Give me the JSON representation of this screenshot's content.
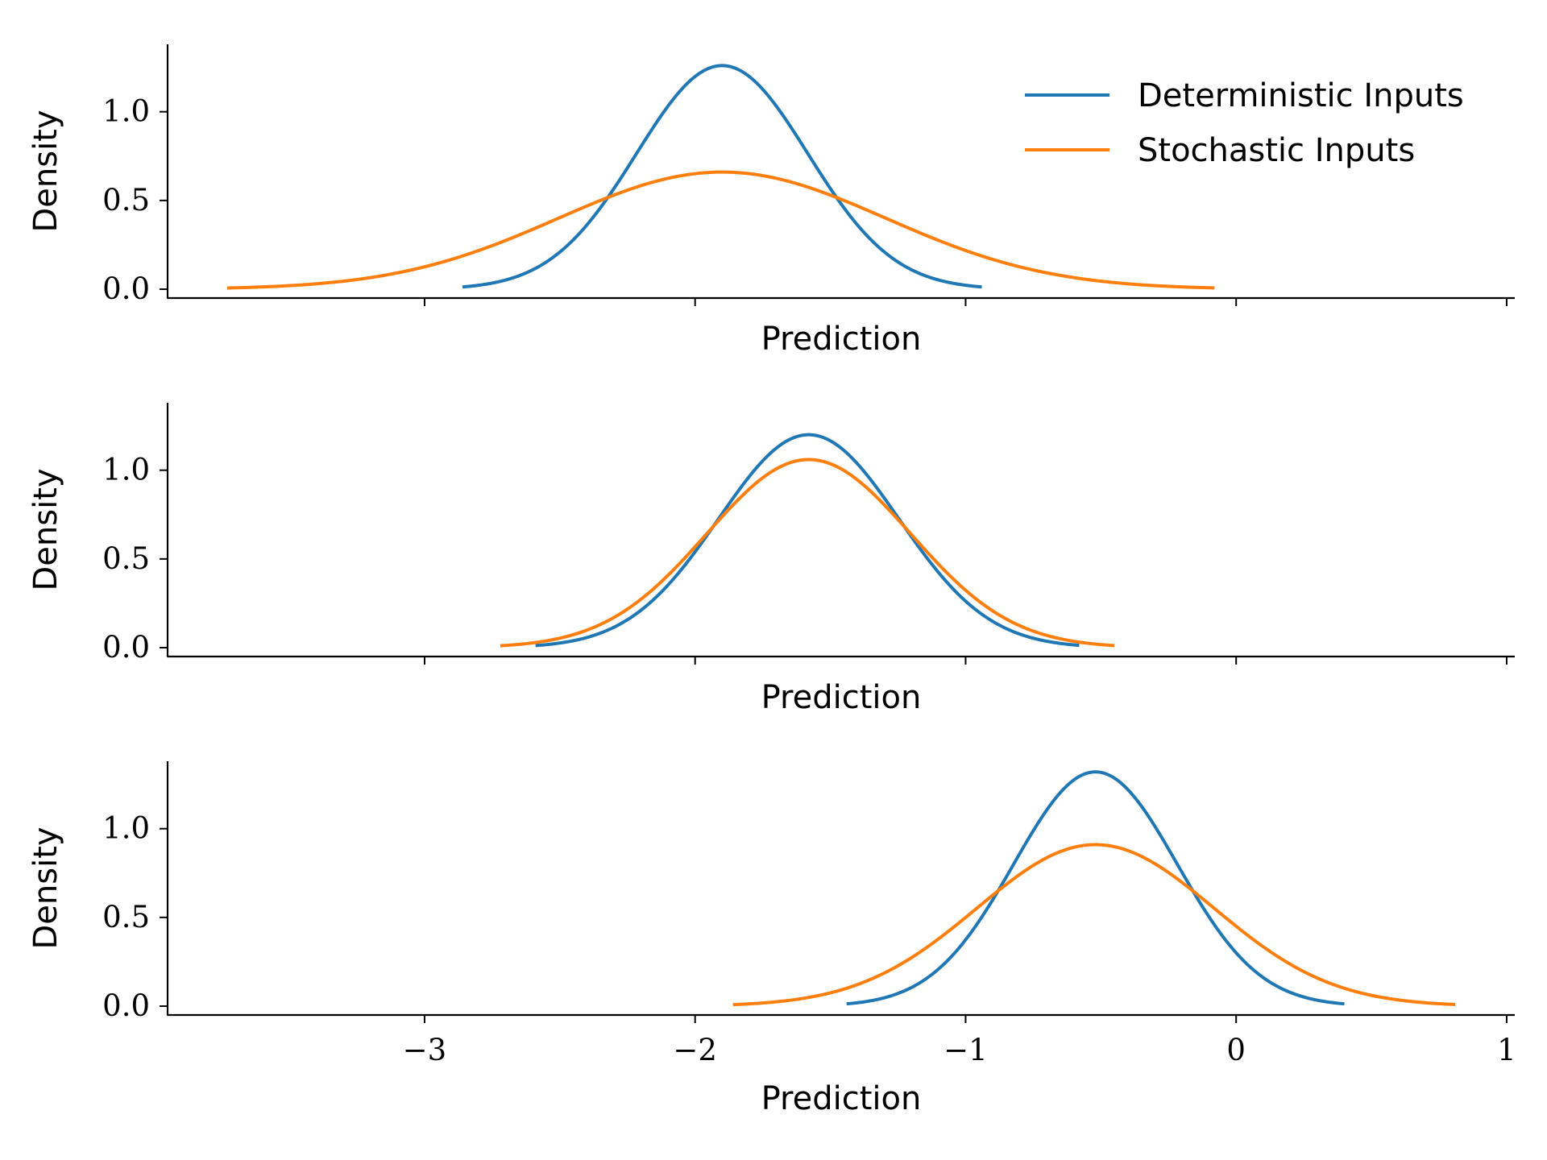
{
  "chart_data": [
    {
      "type": "line",
      "xlabel": "Prediction",
      "ylabel": "Density",
      "xlim": [
        -3.95,
        1.03
      ],
      "ylim": [
        -0.05,
        1.38
      ],
      "xticks": [
        -3,
        -2,
        -1,
        0,
        1
      ],
      "xtick_labels": [
        "",
        "",
        "",
        "",
        ""
      ],
      "yticks": [
        0.0,
        0.5,
        1.0
      ],
      "ytick_labels": [
        "0.0",
        "0.5",
        "1.0"
      ],
      "legend": "top-right",
      "series": [
        {
          "name": "Deterministic Inputs",
          "color": "#1f77b4",
          "mean": -1.9,
          "peak": 1.26,
          "x_range": [
            -2.86,
            -0.94
          ]
        },
        {
          "name": "Stochastic Inputs",
          "color": "#ff7f0e",
          "mean": -1.9,
          "peak": 0.66,
          "x_range": [
            -3.73,
            -0.08
          ]
        }
      ]
    },
    {
      "type": "line",
      "xlabel": "Prediction",
      "ylabel": "Density",
      "xlim": [
        -3.95,
        1.03
      ],
      "ylim": [
        -0.05,
        1.38
      ],
      "xticks": [
        -3,
        -2,
        -1,
        0,
        1
      ],
      "xtick_labels": [
        "",
        "",
        "",
        "",
        ""
      ],
      "yticks": [
        0.0,
        0.5,
        1.0
      ],
      "ytick_labels": [
        "0.0",
        "0.5",
        "1.0"
      ],
      "legend": "none",
      "series": [
        {
          "name": "Deterministic Inputs",
          "color": "#1f77b4",
          "mean": -1.58,
          "peak": 1.2,
          "x_range": [
            -2.59,
            -0.58
          ]
        },
        {
          "name": "Stochastic Inputs",
          "color": "#ff7f0e",
          "mean": -1.58,
          "peak": 1.06,
          "x_range": [
            -2.72,
            -0.45
          ]
        }
      ]
    },
    {
      "type": "line",
      "xlabel": "Prediction",
      "ylabel": "Density",
      "xlim": [
        -3.95,
        1.03
      ],
      "ylim": [
        -0.05,
        1.38
      ],
      "xticks": [
        -3,
        -2,
        -1,
        0,
        1
      ],
      "xtick_labels": [
        "−3",
        "−2",
        "−1",
        "0",
        "1"
      ],
      "yticks": [
        0.0,
        0.5,
        1.0
      ],
      "ytick_labels": [
        "0.0",
        "0.5",
        "1.0"
      ],
      "legend": "none",
      "series": [
        {
          "name": "Deterministic Inputs",
          "color": "#1f77b4",
          "mean": -0.52,
          "peak": 1.32,
          "x_range": [
            -1.44,
            0.4
          ]
        },
        {
          "name": "Stochastic Inputs",
          "color": "#ff7f0e",
          "mean": -0.52,
          "peak": 0.91,
          "x_range": [
            -1.86,
            0.81
          ]
        }
      ]
    }
  ]
}
